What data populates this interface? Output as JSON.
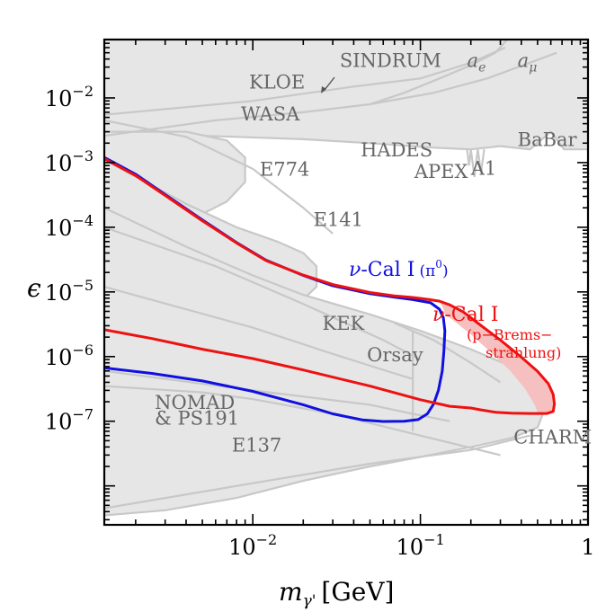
{
  "chart_data": {
    "type": "line",
    "title": "",
    "xlabel": "m",
    "xlabel_subscript": "γ'",
    "xlabel_unit": "[GeV]",
    "ylabel": "ϵ",
    "xscale": "log",
    "yscale": "log",
    "xlim": [
      0.0013,
      1.0
    ],
    "ylim": [
      2.5e-09,
      0.08
    ],
    "x_ticks": [
      {
        "value": 0.01,
        "base": "10",
        "exp": "−2"
      },
      {
        "value": 0.1,
        "base": "10",
        "exp": "−1"
      },
      {
        "value": 1.0,
        "base": "1",
        "exp": ""
      }
    ],
    "y_ticks": [
      {
        "value": 0.01,
        "base": "10",
        "exp": "−2"
      },
      {
        "value": 0.001,
        "base": "10",
        "exp": "−3"
      },
      {
        "value": 0.0001,
        "base": "10",
        "exp": "−4"
      },
      {
        "value": 1e-05,
        "base": "10",
        "exp": "−5"
      },
      {
        "value": 1e-06,
        "base": "10",
        "exp": "−6"
      },
      {
        "value": 1e-07,
        "base": "10",
        "exp": "−7"
      }
    ],
    "excluded_regions_color": "#e6e6e6",
    "excluded_regions_line_color": "#c8c8c8",
    "background_labels": [
      {
        "text": "SINDRUM",
        "italic": false,
        "x": 0.033,
        "y": 0.03
      },
      {
        "text": "KLOE",
        "italic": false,
        "x": 0.0095,
        "y": 0.014
      },
      {
        "text": "WASA",
        "italic": false,
        "x": 0.0085,
        "y": 0.0045
      },
      {
        "text": "HADES",
        "italic": false,
        "x": 0.044,
        "y": 0.00125
      },
      {
        "text": "APEX",
        "italic": false,
        "x": 0.092,
        "y": 0.00058
      },
      {
        "text": "A1",
        "italic": false,
        "x": 0.2,
        "y": 0.00065
      },
      {
        "text": "BaBar",
        "italic": false,
        "x": 0.38,
        "y": 0.0018
      },
      {
        "text": "E774",
        "italic": false,
        "x": 0.011,
        "y": 0.00063
      },
      {
        "text": "E141",
        "italic": false,
        "x": 0.023,
        "y": 0.000105
      },
      {
        "text": "KEK",
        "italic": false,
        "x": 0.026,
        "y": 2.6e-06
      },
      {
        "text": "Orsay",
        "italic": false,
        "x": 0.048,
        "y": 8.5e-07
      },
      {
        "text": "NOMAD",
        "italic": false,
        "x": 0.0026,
        "y": 1.55e-07
      },
      {
        "text": "& PS191",
        "italic": false,
        "x": 0.0026,
        "y": 8.8e-08
      },
      {
        "text": "E137",
        "italic": false,
        "x": 0.0075,
        "y": 3.4e-08
      },
      {
        "text": "CHARM",
        "italic": false,
        "x": 0.36,
        "y": 4.5e-08
      }
    ],
    "anomaly_labels": [
      {
        "base": "a",
        "sub": "e",
        "x": 0.19,
        "y": 0.03
      },
      {
        "base": "a",
        "sub": "μ",
        "x": 0.38,
        "y": 0.03
      }
    ],
    "series": [
      {
        "name": "ν-Cal I (π⁰)",
        "label_parts": {
          "nu": "ν",
          "main": "-Cal I",
          "paren": "(π",
          "sup": "0",
          "close": ")"
        },
        "color": "#1010e0",
        "points": [
          [
            0.0013,
            0.0012
          ],
          [
            0.002,
            0.00066
          ],
          [
            0.003,
            0.00032
          ],
          [
            0.005,
            0.00013
          ],
          [
            0.008,
            5.8e-05
          ],
          [
            0.012,
            3.1e-05
          ],
          [
            0.02,
            1.8e-05
          ],
          [
            0.03,
            1.25e-05
          ],
          [
            0.05,
            9.4e-06
          ],
          [
            0.07,
            8.3e-06
          ],
          [
            0.09,
            7.6e-06
          ],
          [
            0.115,
            6.8e-06
          ],
          [
            0.13,
            5.4e-06
          ],
          [
            0.137,
            4e-06
          ],
          [
            0.14,
            2.5e-06
          ],
          [
            0.138,
            1.2e-06
          ],
          [
            0.135,
            6e-07
          ],
          [
            0.128,
            3e-07
          ],
          [
            0.12,
            1.85e-07
          ],
          [
            0.11,
            1.3e-07
          ],
          [
            0.097,
            1.06e-07
          ],
          [
            0.08,
            1e-07
          ],
          [
            0.06,
            9.9e-08
          ],
          [
            0.045,
            1.05e-07
          ],
          [
            0.03,
            1.3e-07
          ],
          [
            0.02,
            1.8e-07
          ],
          [
            0.01,
            2.9e-07
          ],
          [
            0.005,
            4.2e-07
          ],
          [
            0.0025,
            5.5e-07
          ],
          [
            0.0013,
            6.7e-07
          ]
        ]
      },
      {
        "name": "ν-Cal I (p−Brems-strahlung)",
        "label_parts": {
          "nu": "ν",
          "main": "-Cal I",
          "line2": "(p−Brems−",
          "line3": "strahlung)"
        },
        "color": "#ee1111",
        "points": [
          [
            0.0013,
            0.00115
          ],
          [
            0.002,
            0.00063
          ],
          [
            0.003,
            0.00031
          ],
          [
            0.005,
            0.000126
          ],
          [
            0.008,
            5.7e-05
          ],
          [
            0.012,
            3.05e-05
          ],
          [
            0.02,
            1.82e-05
          ],
          [
            0.03,
            1.3e-05
          ],
          [
            0.05,
            9.8e-06
          ],
          [
            0.07,
            8.7e-06
          ],
          [
            0.09,
            8.2e-06
          ],
          [
            0.11,
            7.7e-06
          ],
          [
            0.13,
            7.2e-06
          ],
          [
            0.15,
            6.3e-06
          ],
          [
            0.18,
            4.9e-06
          ],
          [
            0.22,
            3.3e-06
          ],
          [
            0.3,
            1.8e-06
          ],
          [
            0.4,
            9.8e-07
          ],
          [
            0.5,
            5.9e-07
          ],
          [
            0.58,
            3.8e-07
          ],
          [
            0.62,
            2.6e-07
          ],
          [
            0.63,
            1.85e-07
          ],
          [
            0.62,
            1.42e-07
          ],
          [
            0.57,
            1.32e-07
          ],
          [
            0.45,
            1.32e-07
          ],
          [
            0.35,
            1.33e-07
          ],
          [
            0.28,
            1.38e-07
          ],
          [
            0.23,
            1.5e-07
          ],
          [
            0.2,
            1.6e-07
          ],
          [
            0.15,
            1.7e-07
          ],
          [
            0.1,
            2.15e-07
          ],
          [
            0.05,
            3.5e-07
          ],
          [
            0.02,
            6.2e-07
          ],
          [
            0.01,
            9.3e-07
          ],
          [
            0.005,
            1.3e-06
          ],
          [
            0.0025,
            1.9e-06
          ],
          [
            0.0013,
            2.6e-06
          ]
        ]
      }
    ],
    "pink_band_color": "#f7c0c0"
  }
}
